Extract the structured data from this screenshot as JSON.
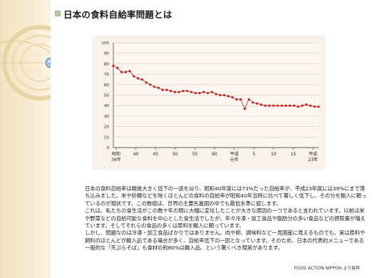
{
  "title": "日本の食料自給率問題とは",
  "chart_data": {
    "type": "line",
    "y_ticks": [
      "100",
      "90",
      "80",
      "70",
      "60",
      "50",
      "40",
      "30",
      "20",
      "10",
      "0"
    ],
    "ylim": [
      0,
      100
    ],
    "x_tick_labels": [
      {
        "line1": "昭和",
        "line2": "36年"
      },
      {
        "line1": "40",
        "line2": ""
      },
      {
        "line1": "45",
        "line2": ""
      },
      {
        "line1": "50",
        "line2": ""
      },
      {
        "line1": "55",
        "line2": ""
      },
      {
        "line1": "60",
        "line2": ""
      },
      {
        "line1": "平成",
        "line2": "元年"
      },
      {
        "line1": "5",
        "line2": ""
      },
      {
        "line1": "10",
        "line2": ""
      },
      {
        "line1": "15",
        "line2": ""
      },
      {
        "line1": "平成",
        "line2": "23年"
      }
    ],
    "series": [
      {
        "color": "#c4201e",
        "x": [
          1961,
          1962,
          1963,
          1964,
          1965,
          1966,
          1967,
          1968,
          1969,
          1970,
          1971,
          1972,
          1973,
          1974,
          1975,
          1976,
          1977,
          1978,
          1979,
          1980,
          1981,
          1982,
          1983,
          1984,
          1985,
          1986,
          1987,
          1988,
          1989,
          1990,
          1991,
          1992,
          1993,
          1994,
          1995,
          1996,
          1997,
          1998,
          1999,
          2000,
          2001,
          2002,
          2003,
          2004,
          2005,
          2006,
          2007,
          2008,
          2009,
          2010,
          2011
        ],
        "values": [
          78,
          76,
          72,
          72,
          73,
          68,
          66,
          65,
          62,
          60,
          58,
          57,
          55,
          55,
          54,
          53,
          53,
          54,
          54,
          53,
          52,
          52,
          53,
          52,
          53,
          51,
          50,
          50,
          49,
          48,
          46,
          46,
          37,
          46,
          43,
          42,
          41,
          40,
          40,
          40,
          40,
          40,
          40,
          40,
          40,
          39,
          40,
          41,
          40,
          39,
          39
        ]
      }
    ]
  },
  "body": {
    "p1": "日本の食料自給率は戦後大きく低下の一途を辿り、昭和40年度には73%だった自給率が、平成23年度には39%にまで落ち込みました。米や砂糖などを除くほとんどの食料の自給率が昭和40年当時に比べて著しく低下し、その分を輸入に頼っているのが現状です。この数値は、世界の主要先進国の中でも最低水準に値します。",
    "p2": "これは、私たちの食生活がこの数十年の間に大幅に変化したことが大きな原因の一つであると言われています。以前は米や野菜などの自給可能な食料を中心とした食生活でしたが、年々冷凍・加工食品や脂肪分の多い食品などの摂取量が増えています。そしてそれらの食品の多くは原料を輸入に頼っています。",
    "p3": "しかし、問題なのは冷凍・加工食品ばかりではありません。肉や卵、調味料など一見国産に見えるものでも、実は原料や飼料のほとんどが輸入品である場合が多く、自給率低下の一因となっています。そのため、日本の代表的メニューである一般的な「天ぷらそば」も食材の約80%は輸入品、という驚くべき現実があります。"
  },
  "source": "FOOD ACTION NIPPON より抜粋"
}
